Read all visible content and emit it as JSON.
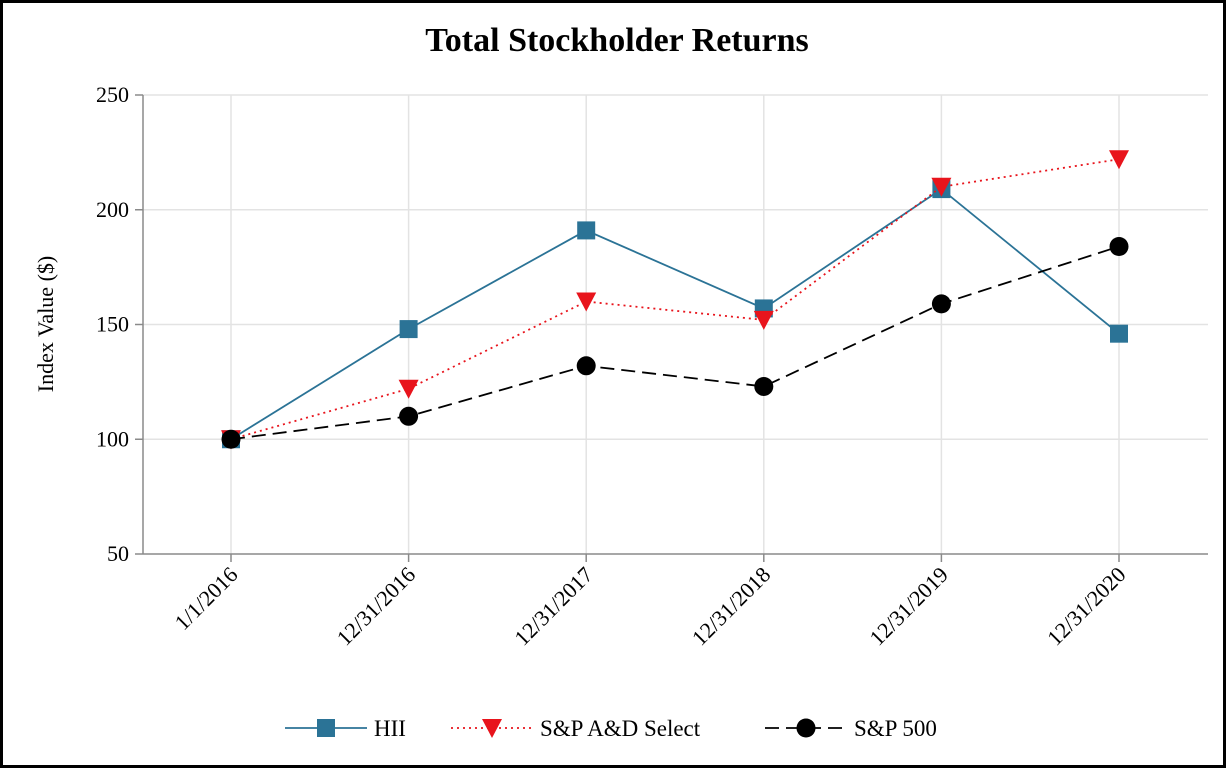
{
  "chart_data": {
    "type": "line",
    "title": "Total Stockholder Returns",
    "xlabel": "",
    "ylabel": "Index Value ($)",
    "ylim": [
      50,
      250
    ],
    "yticks": [
      50,
      100,
      150,
      200,
      250
    ],
    "grid": true,
    "legend_position": "bottom",
    "categories": [
      "1/1/2016",
      "12/31/2016",
      "12/31/2017",
      "12/31/2018",
      "12/31/2019",
      "12/31/2020"
    ],
    "series": [
      {
        "name": "HII",
        "values": [
          100,
          148,
          191,
          157,
          209,
          146
        ],
        "color": "#2b7396",
        "marker": "square",
        "line": "solid"
      },
      {
        "name": "S&P A&D Select",
        "values": [
          100,
          122,
          160,
          152,
          210,
          222
        ],
        "color": "#e8141c",
        "marker": "triangle-down",
        "line": "dotted"
      },
      {
        "name": "S&P 500",
        "values": [
          100,
          110,
          132,
          123,
          159,
          184
        ],
        "color": "#000000",
        "marker": "circle",
        "line": "dashed"
      }
    ]
  }
}
